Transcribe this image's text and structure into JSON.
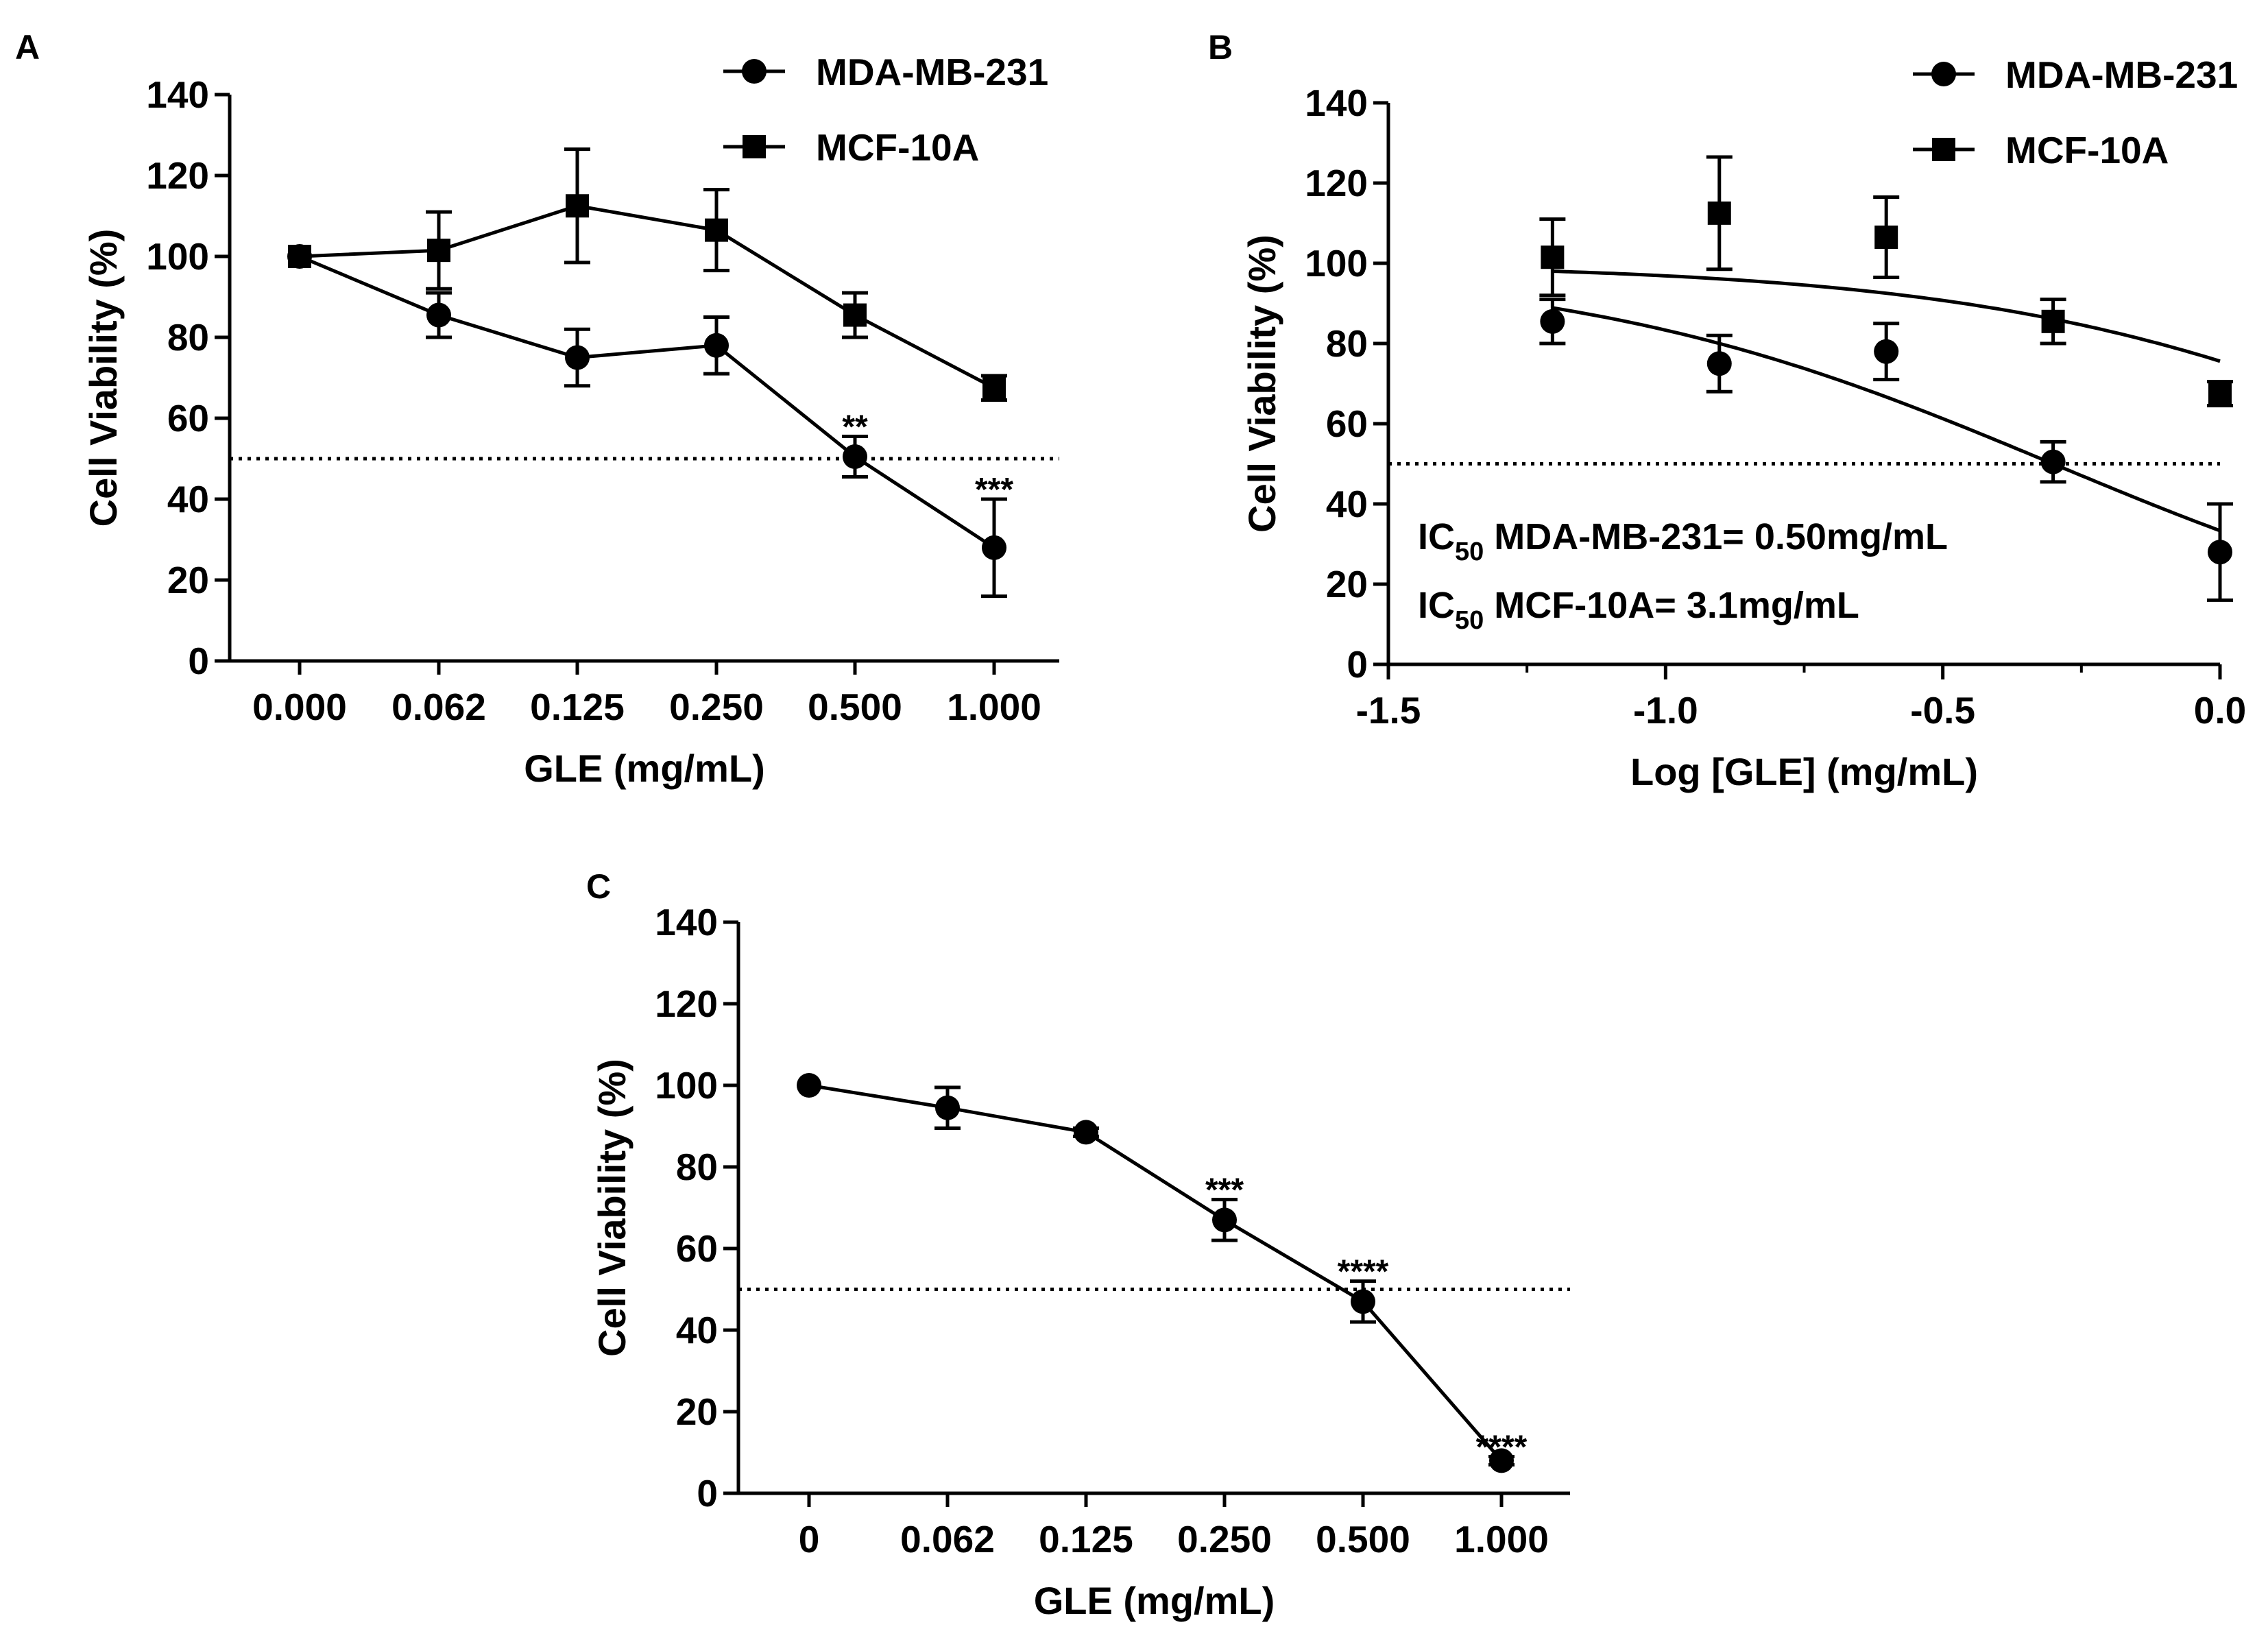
{
  "chart_data": [
    {
      "id": "A",
      "panel_label": "A",
      "type": "line",
      "xlabel": "GLE (mg/mL)",
      "ylabel": "Cell Viability (%)",
      "categories": [
        "0.000",
        "0.062",
        "0.125",
        "0.250",
        "0.500",
        "1.000"
      ],
      "ylim": [
        0,
        140
      ],
      "yticks": [
        "0",
        "20",
        "40",
        "60",
        "80",
        "100",
        "120",
        "140"
      ],
      "reference_line": 50,
      "legend_position": "top-right",
      "series": [
        {
          "name": "MDA-MB-231",
          "marker": "circle",
          "values": [
            100,
            85.5,
            75,
            78,
            50.5,
            28
          ],
          "errors": [
            0,
            5.5,
            7,
            7,
            5,
            12
          ]
        },
        {
          "name": "MCF-10A",
          "marker": "square",
          "values": [
            100,
            101.5,
            112.5,
            106.5,
            85.5,
            67.5
          ],
          "errors": [
            0,
            9.5,
            14,
            10,
            5.5,
            3
          ]
        }
      ],
      "annotations": [
        {
          "text": "**",
          "series": 0,
          "index": 4
        },
        {
          "text": "***",
          "series": 0,
          "index": 5
        }
      ]
    },
    {
      "id": "B",
      "panel_label": "B",
      "type": "scatter",
      "xlabel": "Log [GLE] (mg/mL)",
      "ylabel": "Cell Viability (%)",
      "xlim": [
        -1.5,
        0
      ],
      "xticks": [
        "-1.5",
        "-1.0",
        "-0.5",
        "0.0"
      ],
      "ylim": [
        0,
        140
      ],
      "yticks": [
        "0",
        "20",
        "40",
        "60",
        "80",
        "100",
        "120",
        "140"
      ],
      "reference_line": 50,
      "legend_position": "top-right",
      "series": [
        {
          "name": "MDA-MB-231",
          "marker": "circle",
          "x": [
            -1.204,
            -0.903,
            -0.602,
            -0.301,
            0.0
          ],
          "values": [
            85.5,
            75,
            78,
            50.5,
            28
          ],
          "errors": [
            5.5,
            7,
            7,
            5,
            12
          ],
          "fit": {
            "ic50_log": -0.301,
            "ymin": 0,
            "ymax": 100,
            "hill": 1
          }
        },
        {
          "name": "MCF-10A",
          "marker": "square",
          "x": [
            -1.204,
            -0.903,
            -0.602,
            -0.301,
            0.0
          ],
          "values": [
            101.5,
            112.5,
            106.5,
            85.5,
            67.5
          ],
          "errors": [
            9.5,
            14,
            10,
            5.5,
            3
          ],
          "fit": {
            "ic50_log": 0.491,
            "ymin": 0,
            "ymax": 100,
            "hill": 1
          }
        }
      ],
      "ic50_labels": [
        {
          "prefix": "IC",
          "sub": "50",
          "rest": " MDA-MB-231= 0.50mg/mL"
        },
        {
          "prefix": "IC",
          "sub": "50",
          "rest": " MCF-10A= 3.1mg/mL"
        }
      ]
    },
    {
      "id": "C",
      "panel_label": "C",
      "type": "line",
      "xlabel": "GLE (mg/mL)",
      "ylabel": "Cell Viability (%)",
      "categories": [
        "0",
        "0.062",
        "0.125",
        "0.250",
        "0.500",
        "1.000"
      ],
      "ylim": [
        0,
        140
      ],
      "yticks": [
        "0",
        "20",
        "40",
        "60",
        "80",
        "100",
        "120",
        "140"
      ],
      "reference_line": 50,
      "series": [
        {
          "name": "",
          "marker": "circle",
          "values": [
            100,
            94.5,
            88.5,
            67,
            47,
            8
          ],
          "errors": [
            0,
            5,
            1,
            5,
            5,
            1
          ]
        }
      ],
      "annotations": [
        {
          "text": "***",
          "series": 0,
          "index": 3
        },
        {
          "text": "****",
          "series": 0,
          "index": 4
        },
        {
          "text": "****",
          "series": 0,
          "index": 5
        }
      ]
    }
  ]
}
